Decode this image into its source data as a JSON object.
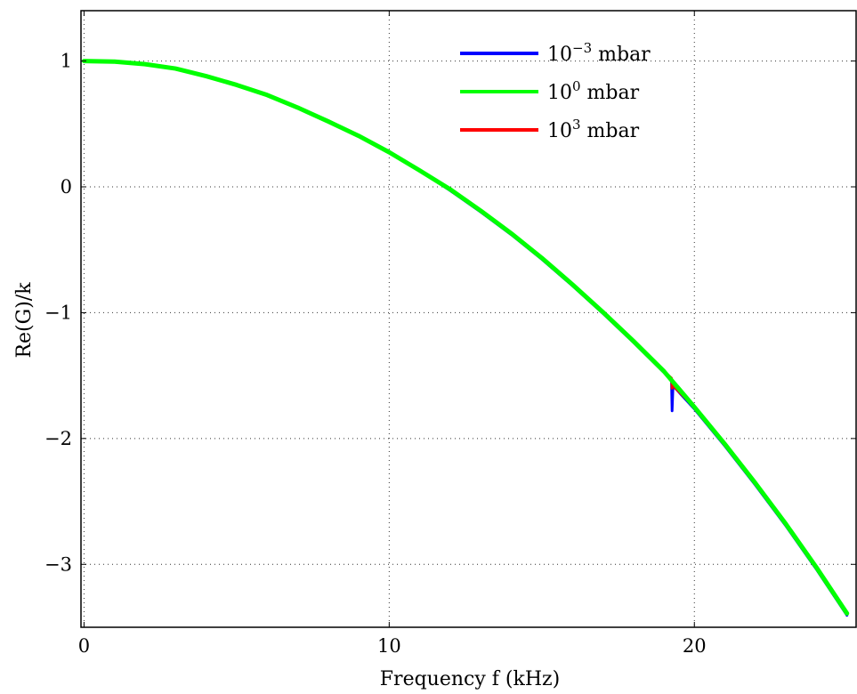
{
  "chart_data": {
    "type": "line",
    "title": "",
    "xlabel": "Frequency f (kHz)",
    "ylabel": "Re(G)/k",
    "xlim": [
      -0.1,
      25.3
    ],
    "ylim": [
      -3.5,
      1.4
    ],
    "xticks": [
      0,
      10,
      20
    ],
    "yticks": [
      1,
      0,
      -1,
      -2,
      -3
    ],
    "xtick_labels": [
      "0",
      "10",
      "20"
    ],
    "ytick_labels": [
      "1",
      "0",
      "−1",
      "−2",
      "−3"
    ],
    "grid": true,
    "legend_position": "top-center",
    "series": [
      {
        "name": "10^-3 mbar",
        "legend_base": "10",
        "legend_exp": "−3",
        "legend_unit": " mbar",
        "color": "#0000ff",
        "x": [
          0,
          1,
          2,
          3,
          4,
          5,
          6,
          7,
          8,
          9,
          10,
          11,
          12,
          13,
          14,
          15,
          16,
          17,
          18,
          19,
          19.25,
          19.27,
          19.3,
          20,
          21,
          22,
          23,
          24,
          25
        ],
        "y": [
          1.0,
          0.995,
          0.975,
          0.94,
          0.88,
          0.81,
          0.73,
          0.63,
          0.52,
          0.405,
          0.275,
          0.13,
          -0.03,
          -0.2,
          -0.38,
          -0.575,
          -0.785,
          -1.005,
          -1.235,
          -1.475,
          -1.535,
          -1.78,
          -1.58,
          -1.765,
          -2.06,
          -2.37,
          -2.695,
          -3.04,
          -3.405
        ]
      },
      {
        "name": "10^3 mbar",
        "legend_base": "10",
        "legend_exp": "3",
        "legend_unit": " mbar",
        "color": "#ff0000",
        "x": [
          0,
          1,
          2,
          3,
          4,
          5,
          6,
          7,
          8,
          9,
          10,
          11,
          12,
          13,
          14,
          15,
          16,
          17,
          18,
          19,
          19.25,
          19.27,
          19.3,
          20,
          21,
          22,
          23,
          24,
          25
        ],
        "y": [
          1.0,
          0.995,
          0.975,
          0.94,
          0.88,
          0.81,
          0.73,
          0.63,
          0.52,
          0.405,
          0.275,
          0.13,
          -0.02,
          -0.19,
          -0.37,
          -0.565,
          -0.775,
          -0.995,
          -1.225,
          -1.465,
          -1.52,
          -1.6,
          -1.58,
          -1.75,
          -2.045,
          -2.355,
          -2.68,
          -3.025,
          -3.39
        ]
      },
      {
        "name": "10^0 mbar",
        "legend_base": "10",
        "legend_exp": "0",
        "legend_unit": " mbar",
        "color": "#00ff00",
        "x": [
          0,
          1,
          2,
          3,
          4,
          5,
          6,
          7,
          8,
          9,
          10,
          11,
          12,
          13,
          14,
          15,
          16,
          17,
          18,
          19,
          20,
          21,
          22,
          23,
          24,
          25
        ],
        "y": [
          1.0,
          0.995,
          0.975,
          0.94,
          0.88,
          0.81,
          0.73,
          0.63,
          0.52,
          0.405,
          0.275,
          0.13,
          -0.02,
          -0.19,
          -0.37,
          -0.565,
          -0.775,
          -0.995,
          -1.225,
          -1.465,
          -1.75,
          -2.045,
          -2.355,
          -2.68,
          -3.025,
          -3.39
        ]
      }
    ],
    "legend_order": [
      0,
      2,
      1
    ]
  }
}
